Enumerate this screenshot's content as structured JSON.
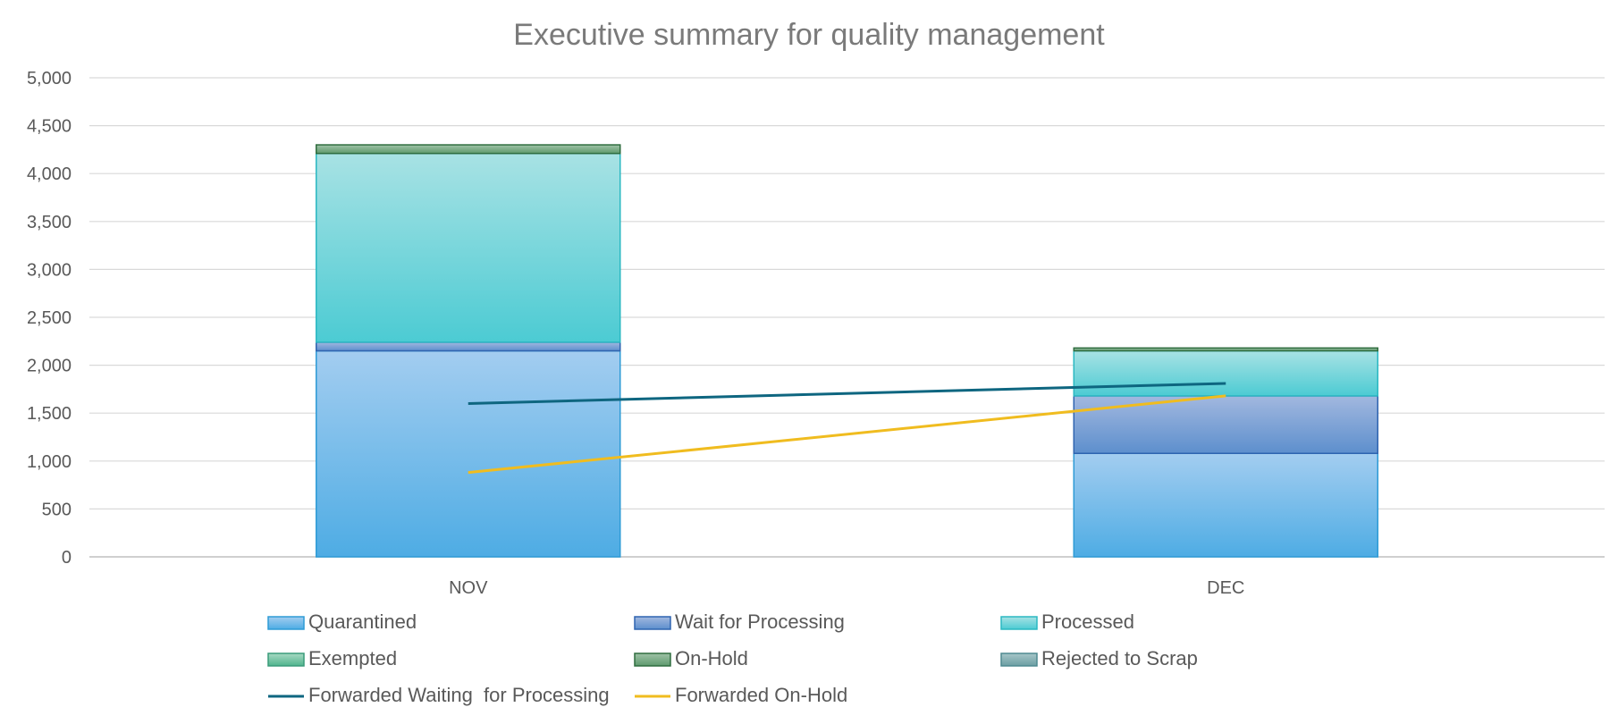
{
  "chart_data": {
    "type": "bar",
    "stacked": true,
    "title": "Executive summary for quality management",
    "xlabel": "",
    "ylabel": "",
    "ylim": [
      0,
      5000
    ],
    "y_ticks": [
      0,
      500,
      1000,
      1500,
      2000,
      2500,
      3000,
      3500,
      4000,
      4500,
      5000
    ],
    "y_tick_labels": [
      "0",
      "500",
      "1,000",
      "1,500",
      "2,000",
      "2,500",
      "3,000",
      "3,500",
      "4,000",
      "4,500",
      "5,000"
    ],
    "grid": true,
    "legend_position": "bottom",
    "categories": [
      "NOV",
      "DEC"
    ],
    "series": [
      {
        "name": "Quarantined",
        "kind": "bar",
        "color_top": "#a3cdf0",
        "color_bottom": "#4eace4",
        "stroke": "#2e9bd6",
        "values": [
          2150,
          1080
        ]
      },
      {
        "name": "Wait for Processing",
        "kind": "bar",
        "color_top": "#a2b8df",
        "color_bottom": "#5d8fcd",
        "stroke": "#2f64b0",
        "values": [
          90,
          600
        ]
      },
      {
        "name": "Processed",
        "kind": "bar",
        "color_top": "#a8e2e4",
        "color_bottom": "#4ccbd3",
        "stroke": "#2bb8c2",
        "values": [
          1970,
          470
        ]
      },
      {
        "name": "Exempted",
        "kind": "bar",
        "color_top": "#a8d9c3",
        "color_bottom": "#4fb48d",
        "stroke": "#3a9b7a",
        "values": [
          0,
          0
        ]
      },
      {
        "name": "On-Hold",
        "kind": "bar",
        "color_top": "#9fc2a6",
        "color_bottom": "#5e9a6e",
        "stroke": "#2f6d3f",
        "values": [
          90,
          30
        ]
      },
      {
        "name": "Rejected to Scrap",
        "kind": "bar",
        "color_top": "#a6c6c8",
        "color_bottom": "#6c9ea3",
        "stroke": "#4f8a90",
        "values": [
          0,
          0
        ]
      },
      {
        "name": "Forwarded Waiting  for Processing",
        "kind": "line",
        "color": "#0e6680",
        "values": [
          1600,
          1810
        ]
      },
      {
        "name": "Forwarded On-Hold",
        "kind": "line",
        "color": "#f0bc1f",
        "values": [
          880,
          1680
        ]
      }
    ]
  }
}
